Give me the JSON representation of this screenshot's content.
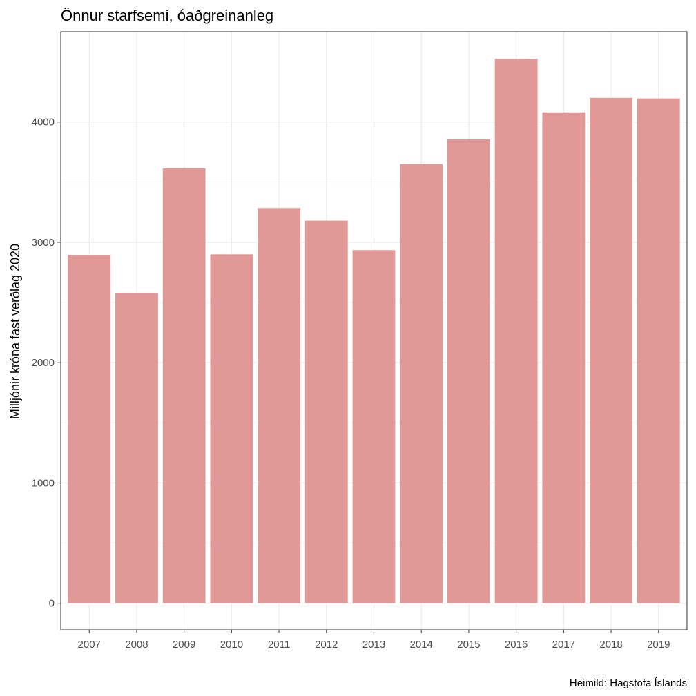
{
  "chart_data": {
    "type": "bar",
    "title": "Önnur starfsemi, óaðgreinanleg",
    "ylabel": "Milljónir króna fast verðlag 2020",
    "xlabel": "",
    "caption": "Heimild: Hagstofa Íslands",
    "categories": [
      "2007",
      "2008",
      "2009",
      "2010",
      "2011",
      "2012",
      "2013",
      "2014",
      "2015",
      "2016",
      "2017",
      "2018",
      "2019"
    ],
    "values": [
      2895,
      2580,
      3615,
      2900,
      3285,
      3180,
      2935,
      3650,
      3855,
      4525,
      4080,
      4200,
      4195
    ],
    "yticks": [
      0,
      1000,
      2000,
      3000,
      4000
    ],
    "ylim": [
      -220,
      4750
    ],
    "grid": true,
    "colors": {
      "bar": "#e09996",
      "grid_major": "#ebebeb",
      "grid_minor": "#f3f3f3",
      "panel_border": "#333333"
    }
  }
}
